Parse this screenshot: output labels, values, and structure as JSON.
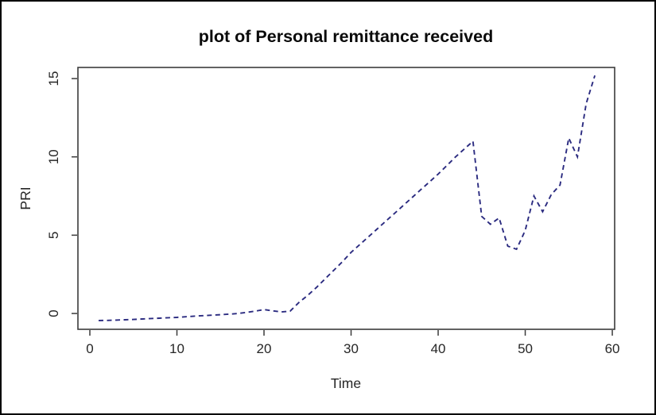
{
  "window": {
    "background": "#ffffff",
    "border_color": "#000000"
  },
  "chart_data": {
    "type": "line",
    "title": "plot of Personal remittance received",
    "xlabel": "Time",
    "ylabel": "PRI",
    "x_ticks": [
      0,
      10,
      20,
      30,
      40,
      50,
      60
    ],
    "y_ticks": [
      0,
      5,
      10,
      15
    ],
    "xlim": [
      -1.37,
      60.27
    ],
    "ylim": [
      -1.01,
      15.71
    ],
    "grid": false,
    "legend": "none",
    "line_style": "dashed",
    "line_color": "#2b2b80",
    "series": [
      {
        "name": "PRI",
        "x": [
          1,
          2,
          3,
          4,
          5,
          6,
          7,
          8,
          9,
          10,
          11,
          12,
          13,
          14,
          15,
          16,
          17,
          18,
          19,
          20,
          21,
          22,
          23,
          24,
          25,
          26,
          27,
          28,
          29,
          30,
          31,
          32,
          33,
          34,
          35,
          36,
          37,
          38,
          39,
          40,
          41,
          42,
          43,
          44,
          45,
          46,
          47,
          48,
          49,
          50,
          51,
          52,
          53,
          54,
          55,
          56,
          57,
          58
        ],
        "values": [
          -0.45,
          -0.44,
          -0.42,
          -0.4,
          -0.38,
          -0.35,
          -0.32,
          -0.3,
          -0.27,
          -0.25,
          -0.21,
          -0.17,
          -0.14,
          -0.11,
          -0.08,
          -0.04,
          0,
          0.07,
          0.15,
          0.25,
          0.17,
          0.1,
          0.15,
          0.7,
          1.15,
          1.65,
          2.2,
          2.75,
          3.3,
          3.9,
          4.4,
          4.9,
          5.4,
          5.9,
          6.4,
          6.9,
          7.4,
          7.9,
          8.4,
          8.9,
          9.45,
          10,
          10.5,
          11,
          6.2,
          5.7,
          6.1,
          4.3,
          4.1,
          5.3,
          7.5,
          6.5,
          7.6,
          8.2,
          11.2,
          10,
          13.4,
          15.2
        ]
      }
    ]
  }
}
